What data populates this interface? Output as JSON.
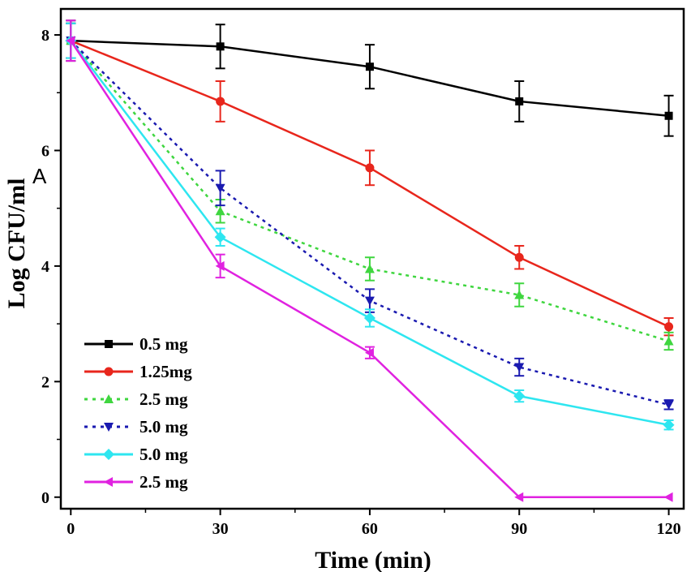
{
  "chart_data": {
    "type": "line",
    "xlabel": "Time (min)",
    "ylabel": "Log CFU/ml",
    "overlay_letter": "A",
    "x": [
      0,
      30,
      60,
      90,
      120
    ],
    "xticks": [
      "0",
      "30",
      "60",
      "90",
      "120"
    ],
    "yticks": [
      "0",
      "2",
      "4",
      "6",
      "8"
    ],
    "xlim": [
      -2,
      123
    ],
    "ylim": [
      -0.2,
      8.45
    ],
    "grid": false,
    "legend_position": "bottom-left",
    "series": [
      {
        "name": "0.5 mg",
        "color": "#000000",
        "marker": "square",
        "dash": "solid",
        "values": [
          7.9,
          7.8,
          7.45,
          6.85,
          6.6
        ],
        "errors": [
          0.35,
          0.38,
          0.38,
          0.35,
          0.35
        ]
      },
      {
        "name": "1.25mg",
        "color": "#e8261c",
        "marker": "circle",
        "dash": "solid",
        "values": [
          7.9,
          6.85,
          5.7,
          4.15,
          2.95
        ],
        "errors": [
          0.3,
          0.35,
          0.3,
          0.2,
          0.15
        ]
      },
      {
        "name": "2.5 mg",
        "color": "#3fd63f",
        "marker": "triangle-up",
        "dash": "dotted",
        "values": [
          7.9,
          4.95,
          3.95,
          3.5,
          2.7
        ],
        "errors": [
          0.3,
          0.2,
          0.2,
          0.2,
          0.15
        ]
      },
      {
        "name": "5.0 mg",
        "color": "#1a1ab0",
        "marker": "triangle-down",
        "dash": "dotted",
        "values": [
          7.9,
          5.35,
          3.4,
          2.25,
          1.6
        ],
        "errors": [
          0.3,
          0.3,
          0.2,
          0.15,
          0.08
        ]
      },
      {
        "name": "5.0 mg",
        "color": "#2ee6f0",
        "marker": "diamond",
        "dash": "solid",
        "values": [
          7.9,
          4.5,
          3.1,
          1.75,
          1.25
        ],
        "errors": [
          0.3,
          0.15,
          0.15,
          0.1,
          0.08
        ]
      },
      {
        "name": "2.5 mg",
        "color": "#e022e0",
        "marker": "triangle-left",
        "dash": "solid",
        "values": [
          7.9,
          4.0,
          2.5,
          0.0,
          0.0
        ],
        "errors": [
          0.35,
          0.2,
          0.1,
          0.0,
          0.0
        ]
      }
    ]
  }
}
